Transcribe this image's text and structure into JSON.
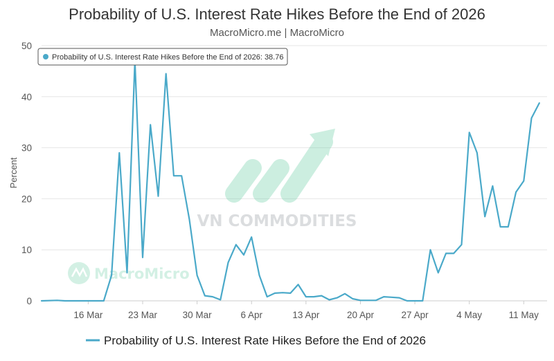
{
  "colors": {
    "series": "#4aa9c9",
    "grid": "#e6e6e6",
    "axis": "#cccccc",
    "watermark_green": "#6fcfa8",
    "watermark_grey": "#9aa0a6"
  },
  "watermarks": {
    "brand": "VN COMMODITIES",
    "micro": "MacroMicro",
    "brand_icon": "rising-arrow-logo-icon",
    "micro_icon": "macromicro-logo-icon"
  },
  "tooltip": {
    "text": "Probability of U.S. Interest Rate Hikes Before the End of 2026: 38.76",
    "icon": "series-dot-icon"
  },
  "chart_data": {
    "type": "line",
    "title": "Probability of U.S. Interest Rate Hikes Before the End of 2026",
    "subtitle": "MacroMicro.me | MacroMicro",
    "xlabel": "",
    "ylabel": "Percent",
    "ylim": [
      0,
      50
    ],
    "yticks": [
      0,
      10,
      20,
      30,
      40,
      50
    ],
    "xlim": [
      "2026-03-10",
      "2026-05-14"
    ],
    "xticks": [
      "16 Mar",
      "23 Mar",
      "30 Mar",
      "6 Apr",
      "13 Apr",
      "20 Apr",
      "27 Apr",
      "4 May",
      "11 May"
    ],
    "xtick_dates": [
      "2026-03-16",
      "2026-03-23",
      "2026-03-30",
      "2026-04-06",
      "2026-04-13",
      "2026-04-20",
      "2026-04-27",
      "2026-05-04",
      "2026-05-11"
    ],
    "grid": true,
    "legend": "bottom",
    "series": [
      {
        "name": "Probability of U.S. Interest Rate Hikes Before the End of 2026",
        "points": [
          [
            "2026-03-10",
            0
          ],
          [
            "2026-03-12",
            0.1
          ],
          [
            "2026-03-13",
            0
          ],
          [
            "2026-03-15",
            0
          ],
          [
            "2026-03-18",
            0
          ],
          [
            "2026-03-19",
            5
          ],
          [
            "2026-03-20",
            29
          ],
          [
            "2026-03-21",
            5.5
          ],
          [
            "2026-03-22",
            47
          ],
          [
            "2026-03-23",
            8.5
          ],
          [
            "2026-03-24",
            34.5
          ],
          [
            "2026-03-25",
            20.5
          ],
          [
            "2026-03-26",
            44.5
          ],
          [
            "2026-03-27",
            24.5
          ],
          [
            "2026-03-28",
            24.5
          ],
          [
            "2026-03-29",
            16
          ],
          [
            "2026-03-30",
            5
          ],
          [
            "2026-03-31",
            1
          ],
          [
            "2026-04-01",
            0.8
          ],
          [
            "2026-04-02",
            0.2
          ],
          [
            "2026-04-03",
            7.5
          ],
          [
            "2026-04-04",
            11
          ],
          [
            "2026-04-05",
            9
          ],
          [
            "2026-04-06",
            12.5
          ],
          [
            "2026-04-07",
            5
          ],
          [
            "2026-04-08",
            0.8
          ],
          [
            "2026-04-09",
            1.5
          ],
          [
            "2026-04-10",
            1.6
          ],
          [
            "2026-04-11",
            1.5
          ],
          [
            "2026-04-12",
            3.2
          ],
          [
            "2026-04-13",
            0.8
          ],
          [
            "2026-04-14",
            0.8
          ],
          [
            "2026-04-15",
            1
          ],
          [
            "2026-04-16",
            0.2
          ],
          [
            "2026-04-17",
            0.6
          ],
          [
            "2026-04-18",
            1.4
          ],
          [
            "2026-04-19",
            0.4
          ],
          [
            "2026-04-20",
            0.1
          ],
          [
            "2026-04-22",
            0.1
          ],
          [
            "2026-04-23",
            0.8
          ],
          [
            "2026-04-24",
            0.7
          ],
          [
            "2026-04-25",
            0.6
          ],
          [
            "2026-04-26",
            0
          ],
          [
            "2026-04-28",
            0
          ],
          [
            "2026-04-29",
            10
          ],
          [
            "2026-04-30",
            5.5
          ],
          [
            "2026-05-01",
            9.3
          ],
          [
            "2026-05-02",
            9.3
          ],
          [
            "2026-05-03",
            11
          ],
          [
            "2026-05-04",
            33
          ],
          [
            "2026-05-05",
            29
          ],
          [
            "2026-05-06",
            16.5
          ],
          [
            "2026-05-07",
            22.5
          ],
          [
            "2026-05-08",
            14.5
          ],
          [
            "2026-05-09",
            14.5
          ],
          [
            "2026-05-10",
            21.3
          ],
          [
            "2026-05-11",
            23.5
          ],
          [
            "2026-05-12",
            35.8
          ],
          [
            "2026-05-13",
            38.76
          ]
        ]
      }
    ]
  }
}
